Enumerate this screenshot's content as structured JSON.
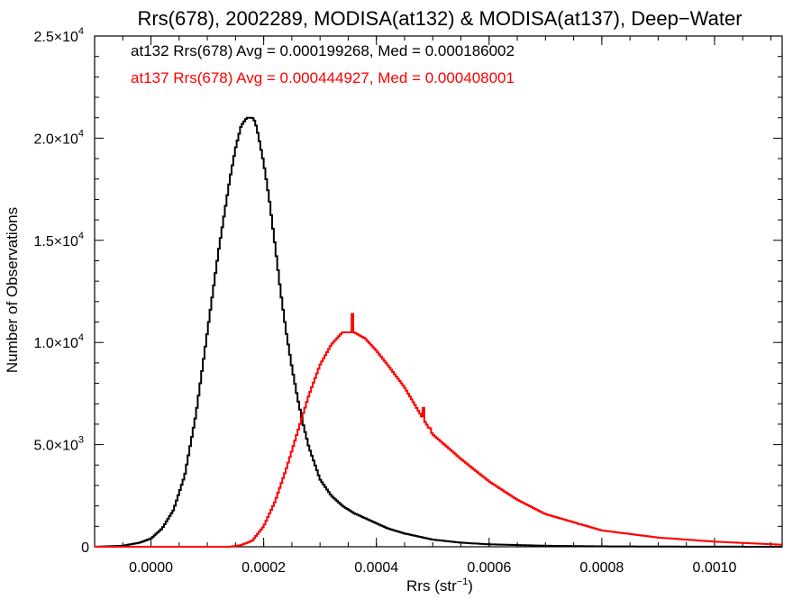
{
  "chart_data": {
    "type": "line",
    "title": "Rrs(678), 2002289, MODISA(at132) & MODISA(at137), Deep−Water",
    "xlabel_main": "Rrs (str",
    "xlabel_sup": "−1",
    "xlabel_close": ")",
    "ylabel": "Number of Observations",
    "xlim": [
      -0.0001,
      0.00112
    ],
    "ylim": [
      0,
      25000
    ],
    "x_ticks": [
      {
        "value": 0.0,
        "label": "0.0000"
      },
      {
        "value": 0.0002,
        "label": "0.0002"
      },
      {
        "value": 0.0004,
        "label": "0.0004"
      },
      {
        "value": 0.0006,
        "label": "0.0006"
      },
      {
        "value": 0.0008,
        "label": "0.0008"
      },
      {
        "value": 0.001,
        "label": "0.0010"
      }
    ],
    "y_ticks": [
      {
        "value": 0,
        "mant": "0",
        "exp": ""
      },
      {
        "value": 5000,
        "mant": "5.0×10",
        "exp": "3"
      },
      {
        "value": 10000,
        "mant": "1.0×10",
        "exp": "4"
      },
      {
        "value": 15000,
        "mant": "1.5×10",
        "exp": "4"
      },
      {
        "value": 20000,
        "mant": "2.0×10",
        "exp": "4"
      },
      {
        "value": 25000,
        "mant": "2.5×10",
        "exp": "4"
      }
    ],
    "series": [
      {
        "name": "at132",
        "color": "#000000",
        "stats_label": "at132 Rrs(678) Avg = 0.000199268, Med = 0.000186002",
        "x": [
          -0.0001,
          -5e-05,
          -2e-05,
          0.0,
          2e-05,
          4e-05,
          6e-05,
          8e-05,
          0.0001,
          0.00012,
          0.00014,
          0.00015,
          0.00016,
          0.00017,
          0.00018,
          0.000185,
          0.00019,
          0.0002,
          0.00021,
          0.00022,
          0.00023,
          0.00024,
          0.00025,
          0.00026,
          0.00027,
          0.00028,
          0.0003,
          0.00032,
          0.00034,
          0.00036,
          0.00038,
          0.0004,
          0.00042,
          0.00045,
          0.0005,
          0.00055,
          0.0006,
          0.0007,
          0.0008,
          0.0009,
          0.001,
          0.00112
        ],
        "y": [
          0,
          50,
          200,
          400,
          900,
          1800,
          3500,
          6500,
          10500,
          14500,
          18000,
          19500,
          20600,
          21000,
          21000,
          20800,
          20200,
          18800,
          17000,
          14800,
          12500,
          10500,
          8800,
          7300,
          6000,
          4900,
          3300,
          2500,
          2000,
          1650,
          1400,
          1150,
          900,
          650,
          350,
          200,
          120,
          50,
          20,
          10,
          5,
          0
        ]
      },
      {
        "name": "at137",
        "color": "#ff0000",
        "stats_label": "at137 Rrs(678) Avg = 0.000444927, Med = 0.000408001",
        "x": [
          -0.0001,
          0.0,
          0.00014,
          0.00016,
          0.00018,
          0.0002,
          0.00022,
          0.00024,
          0.00026,
          0.00028,
          0.0003,
          0.00032,
          0.00034,
          0.00036,
          0.00038,
          0.0004,
          0.00042,
          0.00045,
          0.00048,
          0.0005,
          0.00055,
          0.0006,
          0.00065,
          0.0007,
          0.00075,
          0.0008,
          0.0009,
          0.001,
          0.00112
        ],
        "y": [
          0,
          0,
          0,
          80,
          300,
          1000,
          2200,
          3800,
          5600,
          7400,
          8900,
          9900,
          10500,
          10500,
          10200,
          9600,
          8900,
          7800,
          6400,
          5500,
          4300,
          3200,
          2300,
          1600,
          1200,
          800,
          450,
          250,
          100
        ]
      }
    ],
    "spikes": [
      {
        "series": "at137",
        "x": 0.000357,
        "y": 11400
      },
      {
        "series": "at137",
        "x": 0.000483,
        "y": 6800
      },
      {
        "series": "at137",
        "x": 0.000497,
        "y": 5800
      },
      {
        "series": "at137",
        "x": 0.000628,
        "y": 2700
      },
      {
        "series": "at137",
        "x": 0.00076,
        "y": 1100
      }
    ],
    "grid": false,
    "legend_placement": "top-left"
  }
}
